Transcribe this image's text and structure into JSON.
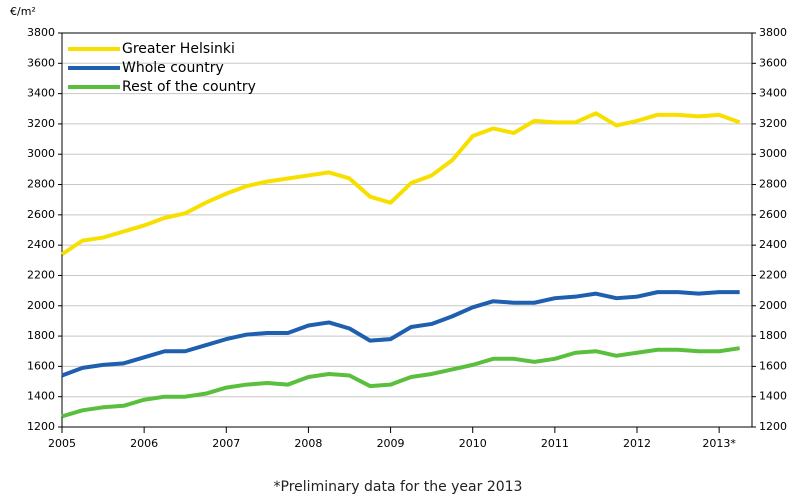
{
  "chart_data": {
    "type": "line",
    "y_label": "€/m²",
    "footnote": "*Preliminary data for the year 2013",
    "x": [
      2005.0,
      2005.25,
      2005.5,
      2005.75,
      2006.0,
      2006.25,
      2006.5,
      2006.75,
      2007.0,
      2007.25,
      2007.5,
      2007.75,
      2008.0,
      2008.25,
      2008.5,
      2008.75,
      2009.0,
      2009.25,
      2009.5,
      2009.75,
      2010.0,
      2010.25,
      2010.5,
      2010.75,
      2011.0,
      2011.25,
      2011.5,
      2011.75,
      2012.0,
      2012.25,
      2012.5,
      2012.75,
      2013.0,
      2013.25
    ],
    "xlim": [
      2005,
      2013.4
    ],
    "xticks": [
      2005,
      2006,
      2007,
      2008,
      2009,
      2010,
      2011,
      2012,
      {
        "value": 2013,
        "label": "2013*"
      }
    ],
    "ylim": [
      1200,
      3800
    ],
    "yticks": [
      1200,
      1400,
      1600,
      1800,
      2000,
      2200,
      2400,
      2600,
      2800,
      3000,
      3200,
      3400,
      3600,
      3800
    ],
    "grid": true,
    "legend": "top-left",
    "series": [
      {
        "name": "Greater Helsinki",
        "color": "#f7df00",
        "values": [
          2340,
          2430,
          2450,
          2490,
          2530,
          2580,
          2610,
          2680,
          2740,
          2790,
          2820,
          2840,
          2860,
          2880,
          2840,
          2720,
          2680,
          2810,
          2860,
          2960,
          3120,
          3170,
          3140,
          3220,
          3210,
          3210,
          3270,
          3190,
          3220,
          3260,
          3260,
          3250,
          3260,
          3210
        ]
      },
      {
        "name": "Whole country",
        "color": "#1f5faf",
        "values": [
          1540,
          1590,
          1610,
          1620,
          1660,
          1700,
          1700,
          1740,
          1780,
          1810,
          1820,
          1820,
          1870,
          1890,
          1850,
          1770,
          1780,
          1860,
          1880,
          1930,
          1990,
          2030,
          2020,
          2020,
          2050,
          2060,
          2080,
          2050,
          2060,
          2090,
          2090,
          2080,
          2090,
          2090
        ]
      },
      {
        "name": "Rest of the country",
        "color": "#5bbf3e",
        "values": [
          1270,
          1310,
          1330,
          1340,
          1380,
          1400,
          1400,
          1420,
          1460,
          1480,
          1490,
          1480,
          1530,
          1550,
          1540,
          1470,
          1480,
          1530,
          1550,
          1580,
          1610,
          1650,
          1650,
          1630,
          1650,
          1690,
          1700,
          1670,
          1690,
          1710,
          1710,
          1700,
          1700,
          1720
        ]
      }
    ]
  }
}
